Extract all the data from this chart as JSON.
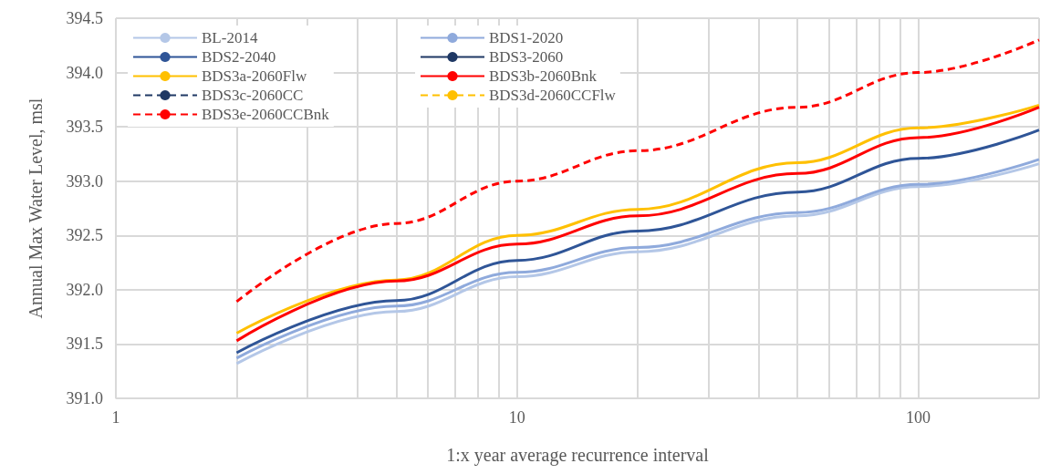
{
  "chart_data": {
    "type": "line",
    "xlabel": "1:x year average recurrence interval",
    "ylabel": "Annual Max Water Level, msl",
    "log": "x",
    "x": [
      2,
      5,
      10,
      20,
      50,
      100,
      200
    ],
    "xlim": [
      1,
      200
    ],
    "xticks": [
      1,
      {
        "value": 2,
        "label": null
      },
      {
        "value": 3,
        "label": null
      },
      {
        "value": 4,
        "label": null
      },
      {
        "value": 5,
        "label": null
      },
      {
        "value": 6,
        "label": null
      },
      {
        "value": 7,
        "label": null
      },
      {
        "value": 8,
        "label": null
      },
      {
        "value": 9,
        "label": null
      },
      10,
      {
        "value": 20,
        "label": null
      },
      {
        "value": 30,
        "label": null
      },
      {
        "value": 40,
        "label": null
      },
      {
        "value": 50,
        "label": null
      },
      {
        "value": 60,
        "label": null
      },
      {
        "value": 70,
        "label": null
      },
      {
        "value": 80,
        "label": null
      },
      {
        "value": 90,
        "label": null
      },
      100,
      {
        "value": 200,
        "label": null
      }
    ],
    "ylim": [
      391,
      394.5
    ],
    "yticks": [
      {
        "value": 391,
        "label": "391.0"
      },
      {
        "value": 391.5,
        "label": "391.5"
      },
      {
        "value": 392,
        "label": "392.0"
      },
      {
        "value": 392.5,
        "label": "392.5"
      },
      {
        "value": 393,
        "label": "393.0"
      },
      {
        "value": 393.5,
        "label": "393.5"
      },
      {
        "value": 394,
        "label": "394.0"
      },
      {
        "value": 394.5,
        "label": "394.5"
      }
    ],
    "grid": true,
    "legend": "top left",
    "marker": "none",
    "series": [
      {
        "name": "BL-2014",
        "color": "#b4c7e7",
        "line_style": "solid",
        "values": [
          391.32,
          391.8,
          392.12,
          392.35,
          392.68,
          392.95,
          393.16
        ]
      },
      {
        "name": "BDS1-2020",
        "color": "#8faadc",
        "line_style": "solid",
        "values": [
          391.37,
          391.85,
          392.16,
          392.39,
          392.71,
          392.97,
          393.2
        ]
      },
      {
        "name": "BDS2-2040",
        "color": "#2f5597",
        "line_style": "solid",
        "values": [
          391.42,
          391.9,
          392.27,
          392.54,
          392.9,
          393.21,
          393.47
        ]
      },
      {
        "name": "BDS3-2060",
        "color": "#1f3864",
        "line_style": "solid",
        "values": [
          null,
          null,
          null,
          null,
          null,
          null,
          null
        ]
      },
      {
        "name": "BDS3a-2060Flw",
        "color": "#ffc000",
        "line_style": "solid",
        "values": [
          391.6,
          392.09,
          392.5,
          392.74,
          393.17,
          393.49,
          393.7
        ]
      },
      {
        "name": "BDS3b-2060Bnk",
        "color": "#ff0000",
        "line_style": "solid",
        "values": [
          391.53,
          392.08,
          392.42,
          392.68,
          393.07,
          393.4,
          393.68
        ]
      },
      {
        "name": "BDS3c-2060CC",
        "color": "#1f3864",
        "line_style": "dashed",
        "values": [
          null,
          null,
          null,
          null,
          null,
          null,
          null
        ]
      },
      {
        "name": "BDS3d-2060CCFlw",
        "color": "#ffc000",
        "line_style": "dashed",
        "values": [
          null,
          null,
          null,
          null,
          null,
          null,
          null
        ]
      },
      {
        "name": "BDS3e-2060CCBnk",
        "color": "#ff0000",
        "line_style": "dashed",
        "values": [
          391.89,
          392.61,
          393.0,
          393.28,
          393.68,
          394.0,
          394.3
        ]
      }
    ]
  }
}
